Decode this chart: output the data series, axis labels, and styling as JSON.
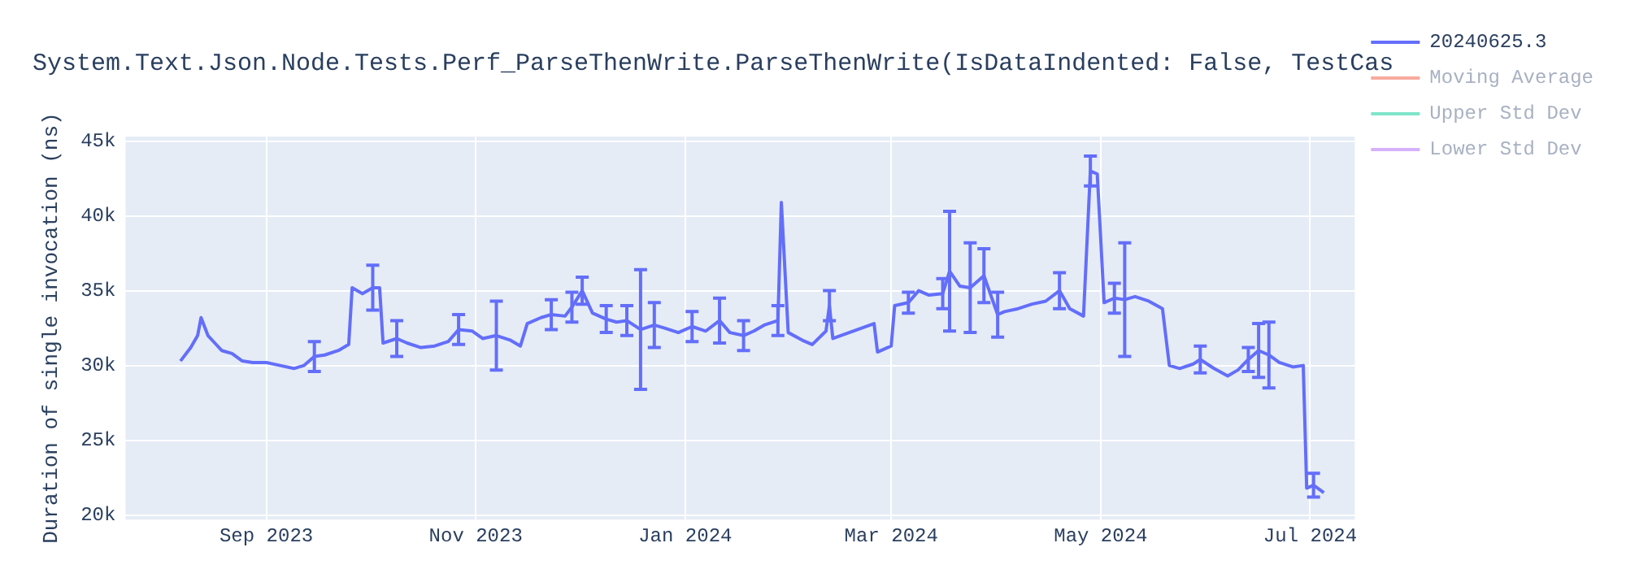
{
  "chart_data": {
    "type": "line",
    "title": "System.Text.Json.Node.Tests.Perf_ParseThenWrite.ParseThenWrite(IsDataIndented: False, TestCas",
    "ylabel": "Duration of single invocation (ns)",
    "x": [
      "2023-08-07",
      "2023-08-10",
      "2023-08-12",
      "2023-08-13",
      "2023-08-15",
      "2023-08-17",
      "2023-08-19",
      "2023-08-22",
      "2023-08-25",
      "2023-08-28",
      "2023-09-01",
      "2023-09-05",
      "2023-09-09",
      "2023-09-12",
      "2023-09-15",
      "2023-09-18",
      "2023-09-22",
      "2023-09-25",
      "2023-09-26",
      "2023-09-29",
      "2023-10-02",
      "2023-10-04",
      "2023-10-05",
      "2023-10-09",
      "2023-10-12",
      "2023-10-16",
      "2023-10-20",
      "2023-10-24",
      "2023-10-27",
      "2023-10-31",
      "2023-11-03",
      "2023-11-07",
      "2023-11-11",
      "2023-11-14",
      "2023-11-16",
      "2023-11-20",
      "2023-11-23",
      "2023-11-27",
      "2023-11-29",
      "2023-12-02",
      "2023-12-05",
      "2023-12-09",
      "2023-12-12",
      "2023-12-15",
      "2023-12-19",
      "2023-12-23",
      "2023-12-26",
      "2023-12-30",
      "2024-01-03",
      "2024-01-07",
      "2024-01-11",
      "2024-01-14",
      "2024-01-18",
      "2024-01-21",
      "2024-01-24",
      "2024-01-28",
      "2024-01-29",
      "2024-01-31",
      "2024-02-04",
      "2024-02-07",
      "2024-02-11",
      "2024-02-12",
      "2024-02-13",
      "2024-02-25",
      "2024-02-26",
      "2024-03-01",
      "2024-03-02",
      "2024-03-06",
      "2024-03-09",
      "2024-03-12",
      "2024-03-16",
      "2024-03-18",
      "2024-03-21",
      "2024-03-24",
      "2024-03-28",
      "2024-04-01",
      "2024-04-03",
      "2024-04-07",
      "2024-04-11",
      "2024-04-15",
      "2024-04-19",
      "2024-04-22",
      "2024-04-26",
      "2024-04-28",
      "2024-04-30",
      "2024-05-02",
      "2024-05-05",
      "2024-05-08",
      "2024-05-11",
      "2024-05-15",
      "2024-05-19",
      "2024-05-21",
      "2024-05-24",
      "2024-05-28",
      "2024-05-30",
      "2024-06-03",
      "2024-06-07",
      "2024-06-10",
      "2024-06-13",
      "2024-06-16",
      "2024-06-19",
      "2024-06-22",
      "2024-06-26",
      "2024-06-29",
      "2024-06-30",
      "2024-07-02",
      "2024-07-05"
    ],
    "series": [
      {
        "name": "20240625.3",
        "color": "#636efa",
        "values": [
          30300,
          31200,
          32000,
          33200,
          32000,
          31500,
          31000,
          30800,
          30300,
          30200,
          30200,
          30000,
          29800,
          30000,
          30600,
          30700,
          31000,
          31400,
          35200,
          34800,
          35200,
          35200,
          31500,
          31800,
          31500,
          31200,
          31300,
          31600,
          32400,
          32300,
          31800,
          32000,
          31700,
          31300,
          32800,
          33200,
          33400,
          33300,
          33900,
          35000,
          33500,
          33100,
          32900,
          33000,
          32400,
          32700,
          32500,
          32200,
          32600,
          32300,
          33000,
          32200,
          32000,
          32300,
          32700,
          33000,
          40900,
          32200,
          31700,
          31400,
          32300,
          34000,
          31800,
          32800,
          30900,
          31300,
          34000,
          34200,
          35000,
          34700,
          34800,
          36300,
          35300,
          35200,
          36000,
          33400,
          33600,
          33800,
          34100,
          34300,
          35000,
          33800,
          33300,
          43000,
          42800,
          34200,
          34500,
          34400,
          34600,
          34300,
          33800,
          30000,
          29800,
          30100,
          30400,
          29800,
          29300,
          29700,
          30400,
          31000,
          30700,
          30200,
          29900,
          30000,
          21800,
          22000,
          21500
        ],
        "errors": [
          null,
          null,
          null,
          null,
          null,
          null,
          null,
          null,
          null,
          null,
          null,
          null,
          null,
          null,
          1000,
          null,
          null,
          null,
          null,
          null,
          1500,
          null,
          null,
          1200,
          null,
          null,
          null,
          null,
          1000,
          null,
          null,
          2300,
          null,
          null,
          null,
          null,
          1000,
          null,
          1000,
          900,
          null,
          900,
          null,
          1000,
          4000,
          1500,
          null,
          null,
          1000,
          null,
          1500,
          null,
          1000,
          null,
          null,
          1000,
          null,
          null,
          null,
          null,
          null,
          1000,
          null,
          null,
          null,
          null,
          null,
          700,
          null,
          null,
          1000,
          4000,
          null,
          3000,
          1800,
          1500,
          null,
          null,
          null,
          null,
          1200,
          null,
          null,
          1000,
          null,
          null,
          1000,
          3800,
          null,
          null,
          null,
          null,
          null,
          null,
          900,
          null,
          null,
          null,
          800,
          1800,
          2200,
          null,
          null,
          null,
          null,
          800,
          null
        ]
      },
      {
        "name": "Moving Average",
        "color": "#f7aa9d",
        "values": [
          null,
          null,
          null,
          null,
          null,
          null,
          null,
          null,
          null,
          null,
          null,
          null,
          null,
          null,
          null,
          null,
          null,
          null,
          null,
          null,
          null,
          null,
          null,
          null,
          null,
          null,
          null,
          null,
          null,
          null,
          null,
          null,
          null,
          null,
          null,
          null,
          null,
          null,
          null,
          null,
          null,
          null,
          null,
          null,
          null,
          null,
          null,
          null,
          null,
          null,
          null,
          null,
          null,
          null,
          null,
          null,
          null,
          null,
          null,
          null,
          null,
          null,
          null,
          null,
          null,
          null,
          null,
          null,
          null,
          null,
          null,
          null,
          null,
          null,
          null,
          null,
          null,
          null,
          null,
          null,
          null,
          null,
          null,
          null,
          null,
          null,
          null,
          null,
          null,
          null,
          null,
          null,
          null,
          null,
          null,
          null,
          null,
          null,
          null,
          null,
          null,
          null,
          null,
          null,
          null,
          null,
          null
        ]
      },
      {
        "name": "Upper Std Dev",
        "color": "#7fe5ca",
        "values": [
          null,
          null,
          null,
          null,
          null,
          null,
          null,
          null,
          null,
          null,
          null,
          null,
          null,
          null,
          null,
          null,
          null,
          null,
          null,
          null,
          null,
          null,
          null,
          null,
          null,
          null,
          null,
          null,
          null,
          null,
          null,
          null,
          null,
          null,
          null,
          null,
          null,
          null,
          null,
          null,
          null,
          null,
          null,
          null,
          null,
          null,
          null,
          null,
          null,
          null,
          null,
          null,
          null,
          null,
          null,
          null,
          null,
          null,
          null,
          null,
          null,
          null,
          null,
          null,
          null,
          null,
          null,
          null,
          null,
          null,
          null,
          null,
          null,
          null,
          null,
          null,
          null,
          null,
          null,
          null,
          null,
          null,
          null,
          null,
          null,
          null,
          null,
          null,
          null,
          null,
          null,
          null,
          null,
          null,
          null,
          null,
          null,
          null,
          null,
          null,
          null,
          null,
          null,
          null,
          null,
          null,
          null
        ]
      },
      {
        "name": "Lower Std Dev",
        "color": "#d5b1fc",
        "values": [
          null,
          null,
          null,
          null,
          null,
          null,
          null,
          null,
          null,
          null,
          null,
          null,
          null,
          null,
          null,
          null,
          null,
          null,
          null,
          null,
          null,
          null,
          null,
          null,
          null,
          null,
          null,
          null,
          null,
          null,
          null,
          null,
          null,
          null,
          null,
          null,
          null,
          null,
          null,
          null,
          null,
          null,
          null,
          null,
          null,
          null,
          null,
          null,
          null,
          null,
          null,
          null,
          null,
          null,
          null,
          null,
          null,
          null,
          null,
          null,
          null,
          null,
          null,
          null,
          null,
          null,
          null,
          null,
          null,
          null,
          null,
          null,
          null,
          null,
          null,
          null,
          null,
          null,
          null,
          null,
          null,
          null,
          null,
          null,
          null,
          null,
          null,
          null,
          null,
          null,
          null,
          null,
          null,
          null,
          null,
          null,
          null,
          null,
          null,
          null,
          null,
          null,
          null,
          null,
          null,
          null,
          null
        ]
      }
    ],
    "xlim": [
      "2023-07-22",
      "2024-07-14"
    ],
    "xticks": [
      {
        "value": "2023-09-01",
        "label": "Sep 2023"
      },
      {
        "value": "2023-11-01",
        "label": "Nov 2023"
      },
      {
        "value": "2024-01-01",
        "label": "Jan 2024"
      },
      {
        "value": "2024-03-01",
        "label": "Mar 2024"
      },
      {
        "value": "2024-05-01",
        "label": "May 2024"
      },
      {
        "value": "2024-07-01",
        "label": "Jul 2024"
      }
    ],
    "ylim": [
      19700,
      45300
    ],
    "yticks": [
      {
        "value": 20000,
        "label": "20k"
      },
      {
        "value": 25000,
        "label": "25k"
      },
      {
        "value": 30000,
        "label": "30k"
      },
      {
        "value": 35000,
        "label": "35k"
      },
      {
        "value": 40000,
        "label": "40k"
      },
      {
        "value": 45000,
        "label": "45k"
      }
    ],
    "grid": true,
    "legend": "top right",
    "marker": "none",
    "line_style": "solid"
  }
}
